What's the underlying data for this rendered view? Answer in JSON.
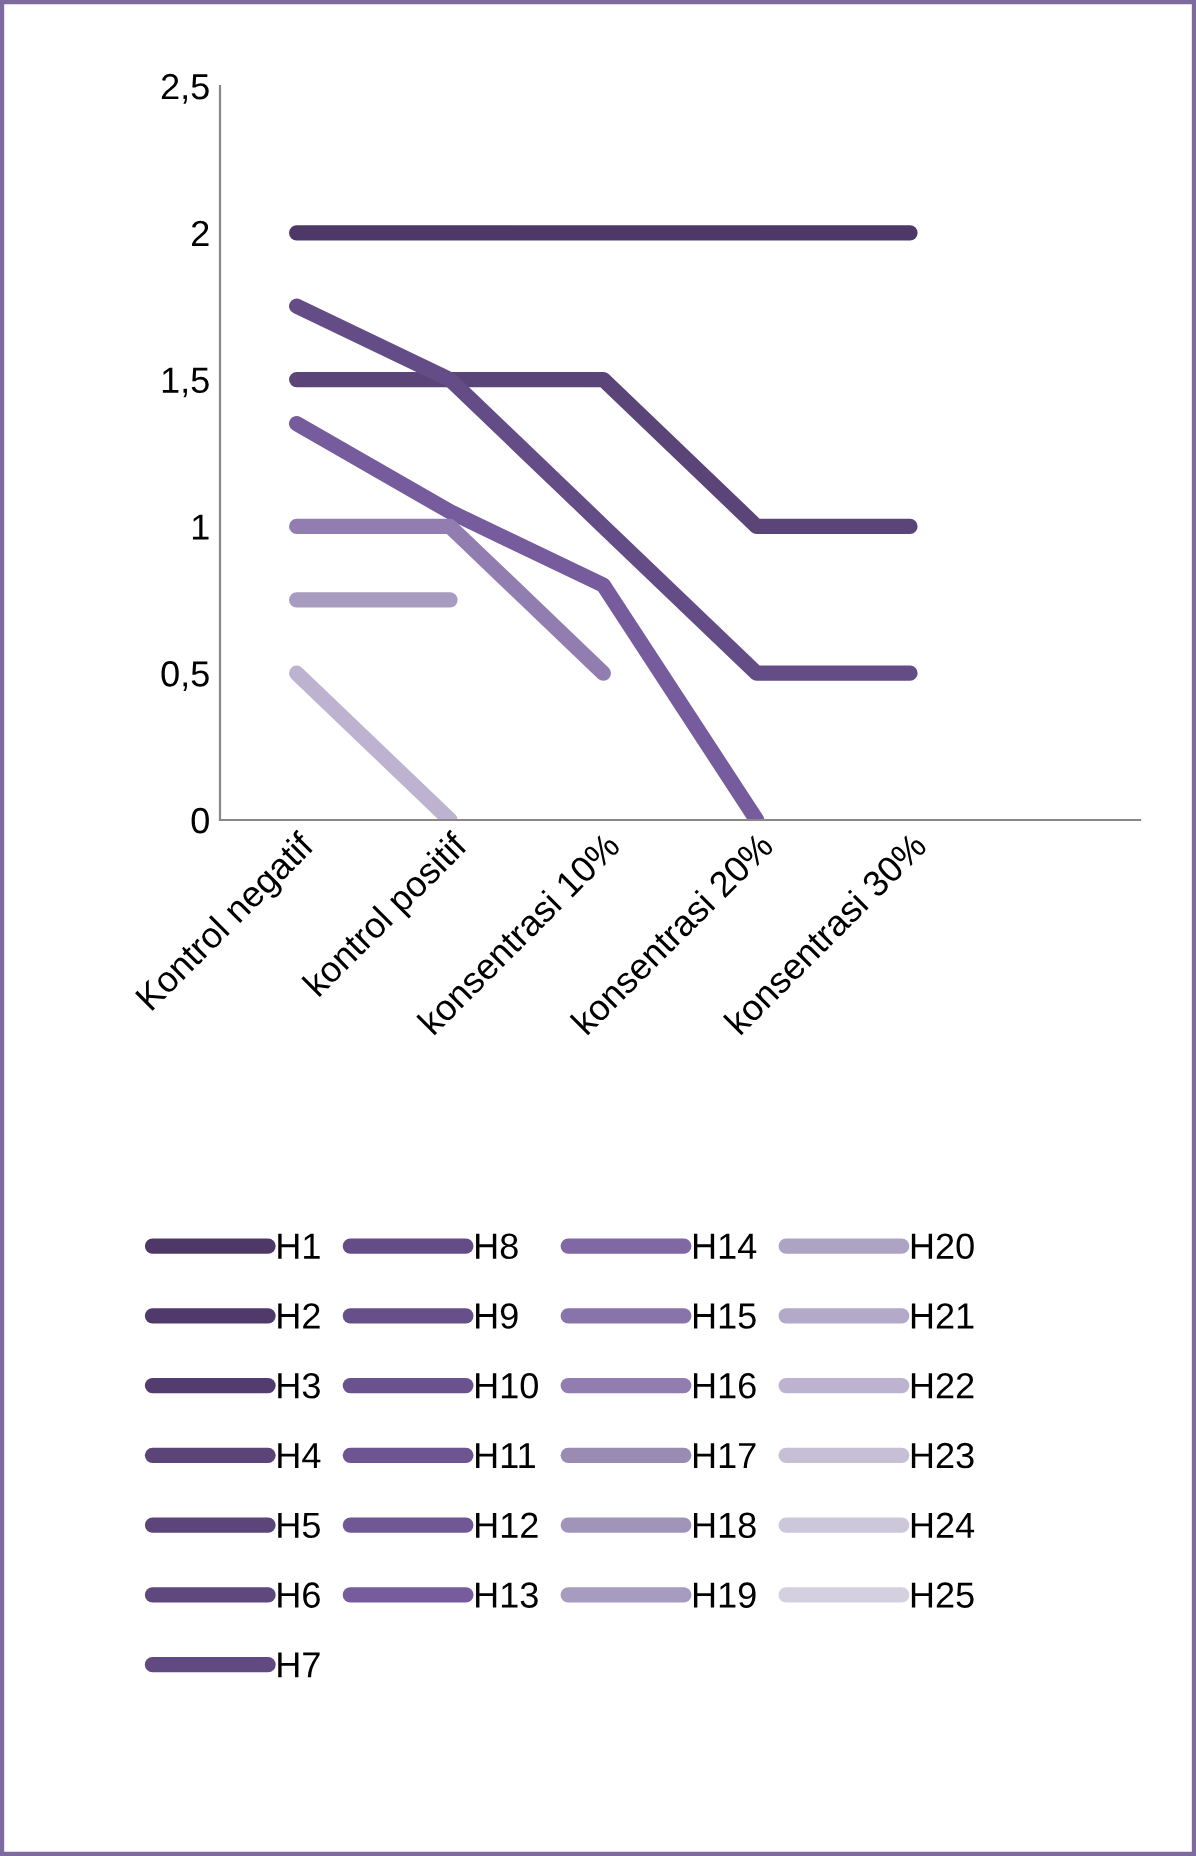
{
  "chart_data": {
    "type": "line",
    "categories": [
      "Kontrol negatif",
      "kontrol positif",
      "konsentrasi 10%",
      "konsentrasi 20%",
      "konsentrasi 30%",
      null
    ],
    "ylim": [
      0,
      2.5
    ],
    "yticks": [
      0,
      {
        "value": 0.5,
        "label": "0,5"
      },
      1,
      {
        "value": 1.5,
        "label": "1,5"
      },
      2,
      {
        "value": 2.5,
        "label": "2,5"
      }
    ],
    "grid": false,
    "legend": "bottom",
    "marker": "none",
    "line_style": "solid",
    "series": [
      {
        "name": "H1",
        "color": "#4d3868",
        "values": [
          2,
          2,
          2,
          2,
          2,
          null
        ]
      },
      {
        "name": "H2",
        "color": "#503a6c",
        "values": [
          null,
          null,
          null,
          null,
          null,
          null
        ]
      },
      {
        "name": "H3",
        "color": "#533d70",
        "values": [
          null,
          null,
          null,
          null,
          null,
          null
        ]
      },
      {
        "name": "H4",
        "color": "#5a4478",
        "values": [
          1.5,
          1.5,
          1.5,
          1,
          1,
          null
        ]
      },
      {
        "name": "H5",
        "color": "#5b457a",
        "values": [
          null,
          null,
          null,
          null,
          null,
          null
        ]
      },
      {
        "name": "H6",
        "color": "#5e487e",
        "values": [
          null,
          null,
          null,
          null,
          null,
          null
        ]
      },
      {
        "name": "H7",
        "color": "#614a82",
        "values": [
          null,
          null,
          null,
          null,
          null,
          null
        ]
      },
      {
        "name": "H8",
        "color": "#644d86",
        "values": [
          1.75,
          1.5,
          1,
          0.5,
          0.5,
          null
        ]
      },
      {
        "name": "H9",
        "color": "#67508a",
        "values": [
          null,
          null,
          null,
          null,
          null,
          null
        ]
      },
      {
        "name": "H10",
        "color": "#6a528e",
        "values": [
          null,
          null,
          null,
          null,
          null,
          null
        ]
      },
      {
        "name": "H11",
        "color": "#6d5592",
        "values": [
          null,
          null,
          null,
          null,
          null,
          null
        ]
      },
      {
        "name": "H12",
        "color": "#705896",
        "values": [
          null,
          null,
          null,
          null,
          null,
          null
        ]
      },
      {
        "name": "H13",
        "color": "#765c9c",
        "values": [
          1.35,
          1.05,
          0.8,
          0,
          null,
          null
        ]
      },
      {
        "name": "H14",
        "color": "#7f68a4",
        "values": [
          null,
          null,
          null,
          null,
          null,
          null
        ]
      },
      {
        "name": "H15",
        "color": "#8874aa",
        "values": [
          null,
          null,
          null,
          null,
          null,
          null
        ]
      },
      {
        "name": "H16",
        "color": "#917daf",
        "values": [
          1,
          1,
          0.5,
          null,
          null,
          null
        ]
      },
      {
        "name": "H17",
        "color": "#9a8bb3",
        "values": [
          null,
          null,
          null,
          null,
          null,
          null
        ]
      },
      {
        "name": "H18",
        "color": "#a094b8",
        "values": [
          null,
          null,
          null,
          null,
          null,
          null
        ]
      },
      {
        "name": "H19",
        "color": "#a89bc0",
        "values": [
          0.75,
          0.75,
          null,
          null,
          null,
          null
        ]
      },
      {
        "name": "H20",
        "color": "#ada3c3",
        "values": [
          null,
          null,
          null,
          null,
          null,
          null
        ]
      },
      {
        "name": "H21",
        "color": "#b3a9c8",
        "values": [
          null,
          null,
          null,
          null,
          null,
          null
        ]
      },
      {
        "name": "H22",
        "color": "#bdb3d1",
        "values": [
          0.5,
          0,
          null,
          null,
          null,
          null
        ]
      },
      {
        "name": "H23",
        "color": "#c6bfd6",
        "values": [
          null,
          null,
          null,
          null,
          null,
          null
        ]
      },
      {
        "name": "H24",
        "color": "#ccc7da",
        "values": [
          null,
          null,
          null,
          null,
          null,
          null
        ]
      },
      {
        "name": "H25",
        "color": "#d4d0e0",
        "values": [
          null,
          null,
          null,
          null,
          null,
          null
        ]
      }
    ]
  }
}
